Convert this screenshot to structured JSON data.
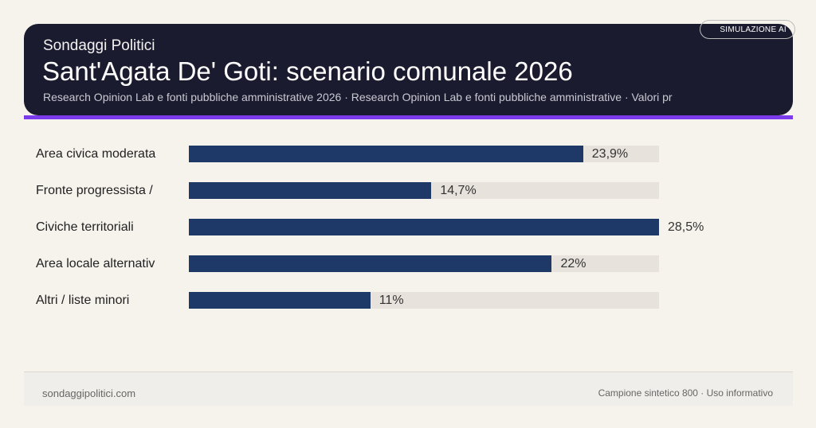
{
  "header": {
    "brand": "Sondaggi Politici",
    "title": "Sant'Agata De' Goti: scenario comunale 2026",
    "subtitle": "Research Opinion Lab e fonti pubbliche amministrative 2026 · Research Opinion Lab e fonti pubbliche amministrative · Valori pr",
    "badge": "SIMULAZIONE AI"
  },
  "colors": {
    "header_bg": "#1b1b2f",
    "accent": "#7c3aed",
    "bar": "#1e3868",
    "track": "#e7e2db"
  },
  "chart_data": {
    "type": "bar",
    "orientation": "horizontal",
    "categories": [
      "Area civica moderata",
      "Fronte progressista /",
      "Civiche territoriali",
      "Area locale alternativ",
      "Altri / liste minori"
    ],
    "values": [
      23.9,
      14.7,
      28.5,
      22,
      11
    ],
    "value_labels": [
      "23,9%",
      "14,7%",
      "28,5%",
      "22%",
      "11%"
    ],
    "xlim": [
      0,
      28.5
    ],
    "grid": false
  },
  "footer": {
    "left": "sondaggipolitici.com",
    "right": "Campione sintetico 800 · Uso informativo"
  }
}
